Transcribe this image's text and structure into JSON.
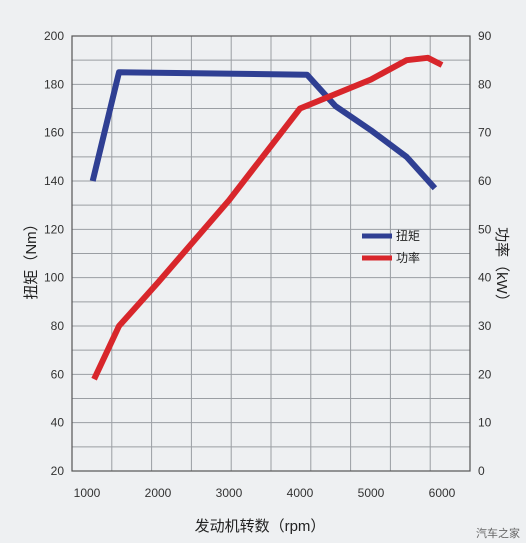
{
  "chart_data": {
    "type": "line",
    "xlabel": "发动机转数（rpm）",
    "ylabel_left": "扭矩（Nm）",
    "ylabel_right": "功率（kW）",
    "x_ticks": [
      1000,
      2000,
      3000,
      4000,
      5000,
      6000
    ],
    "y_left_ticks": [
      20,
      40,
      60,
      80,
      100,
      120,
      140,
      160,
      180,
      200
    ],
    "y_right_ticks": [
      0,
      10,
      20,
      30,
      40,
      50,
      60,
      70,
      80,
      90
    ],
    "xlim": [
      1000,
      6000
    ],
    "ylim_left": [
      20,
      200
    ],
    "ylim_right": [
      0,
      90
    ],
    "grid": true,
    "legend_position": "right-middle",
    "series": [
      {
        "name": "扭矩",
        "axis": "left",
        "color": "#2f3f93",
        "x": [
          1080,
          1450,
          4100,
          4500,
          5000,
          5500,
          5900
        ],
        "y": [
          140,
          185,
          184,
          171,
          161,
          150,
          137
        ]
      },
      {
        "name": "功率",
        "axis": "right",
        "color": "#d8262b",
        "x": [
          1100,
          1450,
          2000,
          3000,
          4000,
          4500,
          5000,
          5500,
          5800,
          6000
        ],
        "y": [
          19,
          30,
          39,
          56,
          75,
          78,
          81,
          85,
          85.5,
          84
        ]
      }
    ]
  },
  "watermark": "汽车之家"
}
